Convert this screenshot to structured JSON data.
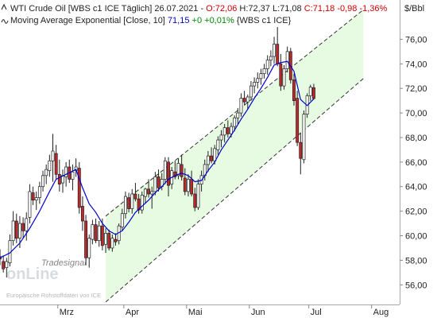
{
  "header": {
    "line1_prefix": "WTI Crude Oil [WBS c1 ICE  Täglich] 26.07.2021 - ",
    "o_label": "O:72,06",
    "h_label": "H:72,37",
    "l_label": "L:71,08",
    "c_label": "C:71,18",
    "chg_label": "-0,98",
    "pct_label": "-1,36%",
    "line2_prefix": "Moving Average Exponential [Close, 10]",
    "ma_value": "71,15",
    "ma_change": "+0",
    "ma_pct": "+0,01%",
    "line2_suffix": "{WBS c1 ICE}",
    "down_color": "#cc0000",
    "up_color": "#008800",
    "ma_color": "#0000cc",
    "icon1": "chevron-up-icon",
    "icon2": "wave-icon"
  },
  "watermark": {
    "brand_top": "Tradesignal",
    "brand_main": "onLine",
    "source": "Europäische Rohstoffdaten von ICE"
  },
  "chart_data": {
    "type": "candlestick",
    "title": "WTI Crude Oil [WBS c1 ICE  Täglich]",
    "unit_label": "$/Bbl",
    "x_tick_labels": [
      "Mrz",
      "Apr",
      "Mai",
      "Jun",
      "Jul",
      "Aug"
    ],
    "x_tick_index": [
      35,
      75,
      113,
      151,
      187,
      225
    ],
    "y_tick_labels": [
      "56,00",
      "58,00",
      "60,00",
      "62,00",
      "64,00",
      "66,00",
      "68,00",
      "70,00",
      "72,00",
      "74,00",
      "76,00"
    ],
    "y_tick_values": [
      56,
      58,
      60,
      62,
      64,
      66,
      68,
      70,
      72,
      74,
      76
    ],
    "ylim": [
      54.4,
      79.2
    ],
    "x_range": [
      0,
      242
    ],
    "trend_channel": {
      "start_index": 64,
      "end_index": 220,
      "upper": [
        61.6,
        78.4
      ],
      "lower": [
        54.6,
        72.8
      ]
    },
    "candles": [
      [
        0,
        58.3,
        58.9,
        57.6,
        58.1
      ],
      [
        2,
        57.9,
        58.4,
        57.0,
        57.3
      ],
      [
        4,
        57.4,
        58.2,
        56.6,
        57.9
      ],
      [
        6,
        57.8,
        60.1,
        57.5,
        59.6
      ],
      [
        8,
        59.6,
        62.0,
        59.2,
        61.2
      ],
      [
        10,
        61.2,
        61.8,
        59.4,
        59.8
      ],
      [
        12,
        59.8,
        61.6,
        59.0,
        61.0
      ],
      [
        14,
        61.0,
        61.5,
        59.8,
        60.4
      ],
      [
        16,
        60.4,
        61.9,
        59.6,
        61.4
      ],
      [
        18,
        61.5,
        64.2,
        61.0,
        63.6
      ],
      [
        20,
        63.5,
        64.0,
        62.5,
        62.9
      ],
      [
        22,
        62.9,
        63.6,
        62.1,
        63.1
      ],
      [
        24,
        63.1,
        64.4,
        62.6,
        64.0
      ],
      [
        26,
        64.0,
        65.3,
        63.6,
        64.9
      ],
      [
        28,
        64.9,
        65.8,
        64.2,
        65.4
      ],
      [
        30,
        65.3,
        66.6,
        64.8,
        66.1
      ],
      [
        32,
        66.1,
        68.3,
        64.4,
        66.9
      ],
      [
        34,
        66.7,
        67.4,
        64.6,
        65.0
      ],
      [
        36,
        65.0,
        66.2,
        63.6,
        64.2
      ],
      [
        38,
        64.3,
        65.4,
        63.5,
        64.9
      ],
      [
        40,
        64.8,
        66.0,
        64.0,
        65.6
      ],
      [
        42,
        65.6,
        66.2,
        64.3,
        64.6
      ],
      [
        44,
        64.6,
        65.8,
        63.7,
        65.2
      ],
      [
        46,
        65.3,
        66.3,
        64.8,
        65.6
      ],
      [
        48,
        65.5,
        66.0,
        61.8,
        62.3
      ],
      [
        50,
        62.4,
        63.2,
        60.4,
        61.2
      ],
      [
        52,
        61.2,
        61.7,
        57.6,
        58.2
      ],
      [
        54,
        58.2,
        60.1,
        57.4,
        59.8
      ],
      [
        56,
        59.7,
        61.3,
        59.3,
        60.9
      ],
      [
        58,
        60.9,
        61.4,
        59.4,
        59.6
      ],
      [
        60,
        59.6,
        61.2,
        59.1,
        60.8
      ],
      [
        62,
        60.8,
        61.4,
        58.8,
        59.2
      ],
      [
        64,
        59.3,
        60.6,
        58.6,
        60.2
      ],
      [
        66,
        60.2,
        60.5,
        58.8,
        59.0
      ],
      [
        68,
        59.0,
        60.1,
        58.7,
        59.8
      ],
      [
        70,
        59.7,
        60.2,
        59.2,
        59.5
      ],
      [
        72,
        59.6,
        61.0,
        59.3,
        60.8
      ],
      [
        74,
        60.7,
        62.2,
        60.4,
        61.8
      ],
      [
        76,
        61.8,
        63.6,
        61.4,
        63.2
      ],
      [
        78,
        63.1,
        63.5,
        61.9,
        62.2
      ],
      [
        80,
        62.2,
        63.8,
        61.8,
        63.4
      ],
      [
        82,
        63.4,
        64.3,
        62.8,
        63.0
      ],
      [
        84,
        63.0,
        63.4,
        61.8,
        62.1
      ],
      [
        86,
        62.1,
        63.6,
        61.8,
        63.3
      ],
      [
        88,
        63.2,
        63.9,
        62.6,
        63.8
      ],
      [
        90,
        63.8,
        64.6,
        63.1,
        63.4
      ],
      [
        92,
        63.4,
        64.0,
        62.2,
        63.6
      ],
      [
        94,
        63.6,
        65.2,
        63.3,
        64.8
      ],
      [
        96,
        64.8,
        65.4,
        63.6,
        63.9
      ],
      [
        98,
        64.0,
        65.1,
        63.7,
        64.6
      ],
      [
        100,
        64.6,
        66.4,
        64.2,
        66.1
      ],
      [
        102,
        66.0,
        66.4,
        63.2,
        64.1
      ],
      [
        104,
        64.2,
        65.6,
        63.8,
        65.3
      ],
      [
        106,
        65.2,
        66.1,
        64.6,
        64.8
      ],
      [
        108,
        64.9,
        66.3,
        64.6,
        65.9
      ],
      [
        110,
        65.8,
        66.6,
        64.5,
        64.8
      ],
      [
        112,
        64.7,
        65.5,
        63.3,
        63.6
      ],
      [
        114,
        63.6,
        65.0,
        63.2,
        64.6
      ],
      [
        116,
        64.6,
        65.3,
        63.2,
        63.4
      ],
      [
        118,
        63.4,
        63.9,
        62.0,
        62.3
      ],
      [
        120,
        62.3,
        64.6,
        62.1,
        64.2
      ],
      [
        122,
        64.2,
        65.3,
        63.6,
        64.9
      ],
      [
        124,
        64.9,
        66.2,
        64.5,
        65.8
      ],
      [
        126,
        65.8,
        66.9,
        65.2,
        66.5
      ],
      [
        128,
        66.5,
        67.2,
        65.9,
        66.1
      ],
      [
        130,
        66.1,
        67.4,
        65.8,
        67.1
      ],
      [
        132,
        67.0,
        68.1,
        66.6,
        67.8
      ],
      [
        134,
        67.8,
        68.6,
        67.2,
        68.2
      ],
      [
        136,
        68.2,
        69.1,
        67.6,
        68.8
      ],
      [
        138,
        68.8,
        69.4,
        68.0,
        68.3
      ],
      [
        140,
        68.3,
        69.2,
        68.0,
        68.9
      ],
      [
        142,
        68.9,
        69.8,
        68.5,
        69.6
      ],
      [
        144,
        69.6,
        70.4,
        69.1,
        70.0
      ],
      [
        146,
        70.0,
        71.6,
        69.7,
        71.2
      ],
      [
        148,
        71.2,
        71.8,
        70.6,
        70.9
      ],
      [
        150,
        70.9,
        71.5,
        70.3,
        71.3
      ],
      [
        152,
        71.3,
        72.6,
        71.0,
        72.2
      ],
      [
        154,
        72.2,
        72.9,
        71.6,
        72.5
      ],
      [
        156,
        72.5,
        73.3,
        72.0,
        72.8
      ],
      [
        158,
        72.8,
        73.6,
        72.3,
        73.2
      ],
      [
        160,
        73.2,
        74.0,
        72.8,
        73.6
      ],
      [
        162,
        73.6,
        74.7,
        73.1,
        74.3
      ],
      [
        164,
        74.3,
        75.1,
        73.8,
        74.6
      ],
      [
        166,
        74.6,
        76.2,
        74.0,
        75.6
      ],
      [
        168,
        75.6,
        77.0,
        73.8,
        74.0
      ],
      [
        170,
        74.0,
        74.8,
        71.8,
        72.2
      ],
      [
        172,
        72.2,
        73.9,
        71.9,
        73.6
      ],
      [
        174,
        73.6,
        75.4,
        73.3,
        75.0
      ],
      [
        176,
        75.0,
        75.3,
        72.4,
        72.7
      ],
      [
        178,
        72.7,
        73.2,
        70.6,
        71.0
      ],
      [
        180,
        71.2,
        71.8,
        67.3,
        67.6
      ],
      [
        182,
        67.6,
        68.4,
        65.0,
        66.3
      ],
      [
        184,
        66.2,
        70.2,
        65.9,
        69.9
      ],
      [
        186,
        69.9,
        71.6,
        69.6,
        71.4
      ],
      [
        188,
        71.4,
        72.3,
        71.0,
        72.1
      ],
      [
        190,
        72.06,
        72.37,
        71.08,
        71.18
      ]
    ],
    "ma_exponential_10": [
      [
        0,
        58.2
      ],
      [
        6,
        58.6
      ],
      [
        12,
        59.4
      ],
      [
        18,
        60.6
      ],
      [
        24,
        62.0
      ],
      [
        30,
        63.6
      ],
      [
        34,
        64.6
      ],
      [
        40,
        65.0
      ],
      [
        46,
        65.4
      ],
      [
        50,
        63.9
      ],
      [
        54,
        62.6
      ],
      [
        58,
        61.9
      ],
      [
        62,
        61.0
      ],
      [
        66,
        60.4
      ],
      [
        70,
        60.1
      ],
      [
        74,
        60.4
      ],
      [
        78,
        61.1
      ],
      [
        82,
        61.9
      ],
      [
        86,
        62.4
      ],
      [
        90,
        62.9
      ],
      [
        94,
        63.5
      ],
      [
        98,
        64.0
      ],
      [
        102,
        64.6
      ],
      [
        106,
        64.9
      ],
      [
        110,
        65.1
      ],
      [
        114,
        64.9
      ],
      [
        118,
        64.4
      ],
      [
        122,
        64.5
      ],
      [
        126,
        65.3
      ],
      [
        130,
        66.0
      ],
      [
        134,
        67.0
      ],
      [
        138,
        67.8
      ],
      [
        142,
        68.6
      ],
      [
        146,
        69.5
      ],
      [
        150,
        70.3
      ],
      [
        154,
        71.2
      ],
      [
        158,
        72.0
      ],
      [
        162,
        72.9
      ],
      [
        166,
        73.9
      ],
      [
        170,
        74.1
      ],
      [
        174,
        74.2
      ],
      [
        178,
        73.4
      ],
      [
        182,
        71.1
      ],
      [
        186,
        70.6
      ],
      [
        190,
        71.15
      ]
    ]
  }
}
